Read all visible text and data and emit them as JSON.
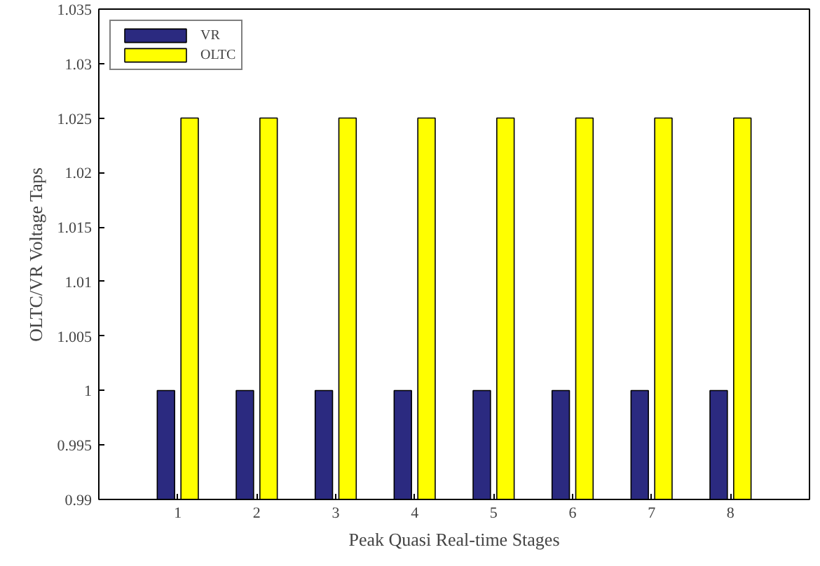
{
  "chart_data": {
    "type": "bar",
    "xlabel": "Peak Quasi Real-time Stages",
    "ylabel": "OLTC/VR Voltage Taps",
    "x": [
      1,
      2,
      3,
      4,
      5,
      6,
      7,
      8
    ],
    "series": [
      {
        "name": "VR",
        "color": "#2b2a80",
        "values": [
          1,
          1,
          1,
          1,
          1,
          1,
          1,
          1
        ]
      },
      {
        "name": "OLTC",
        "color": "#ffff00",
        "values": [
          1.025,
          1.025,
          1.025,
          1.025,
          1.025,
          1.025,
          1.025,
          1.025
        ]
      }
    ],
    "xlim": [
      0,
      9
    ],
    "xticks": [
      1,
      2,
      3,
      4,
      5,
      6,
      7,
      8
    ],
    "ylim": [
      0.99,
      1.035
    ],
    "yticks": [
      0.99,
      0.995,
      1,
      1.005,
      1.01,
      1.015,
      1.02,
      1.025,
      1.03,
      1.035
    ],
    "grid": false,
    "legend": "top left"
  }
}
